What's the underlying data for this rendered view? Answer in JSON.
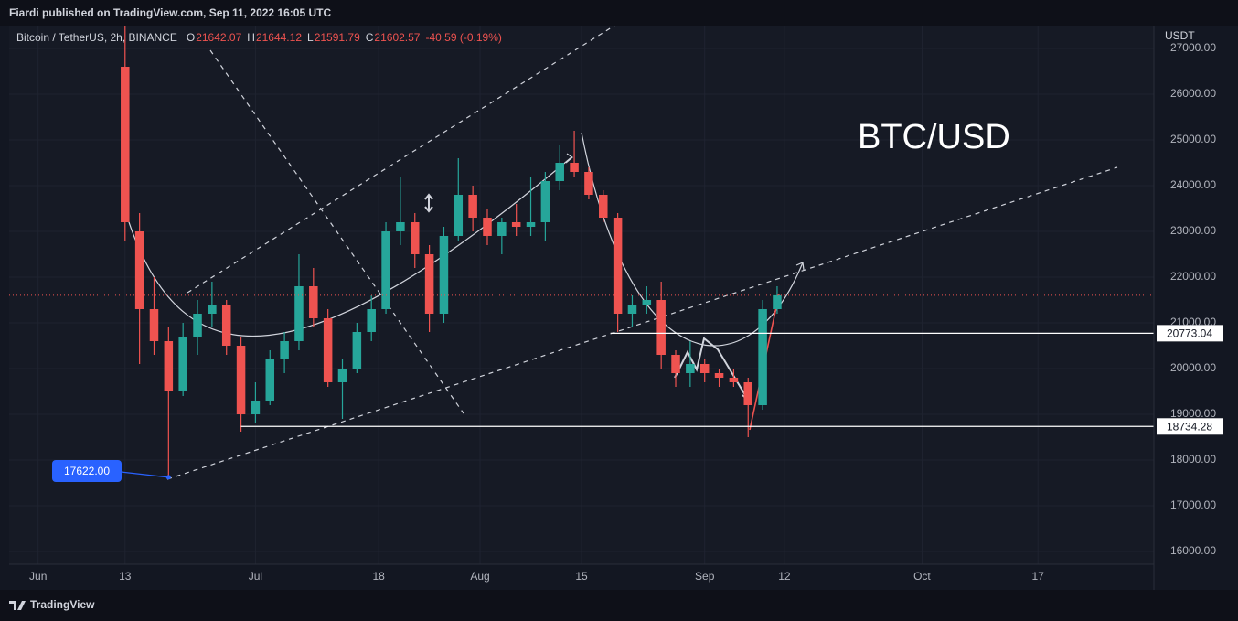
{
  "publish_note": "Fiardi published on TradingView.com, Sep 11, 2022 16:05 UTC",
  "footer": "TradingView",
  "chart_data": {
    "type": "candlestick",
    "header": {
      "symbol": "Bitcoin / TetherUS, 2h, BINANCE",
      "fields": [
        {
          "key": "O",
          "value": 21642.07
        },
        {
          "key": "H",
          "value": 21644.12
        },
        {
          "key": "L",
          "value": 21591.79
        },
        {
          "key": "C",
          "value": 21602.57
        }
      ],
      "change": "-40.59 (-0.19%)"
    },
    "annotation": "BTC/USD",
    "y_unit": "USDT",
    "x": [
      "2022-06-13",
      "2022-06-15",
      "2022-06-17",
      "2022-06-19",
      "2022-06-21",
      "2022-06-23",
      "2022-06-25",
      "2022-06-27",
      "2022-06-29",
      "2022-07-01",
      "2022-07-03",
      "2022-07-05",
      "2022-07-07",
      "2022-07-09",
      "2022-07-11",
      "2022-07-13",
      "2022-07-15",
      "2022-07-17",
      "2022-07-19",
      "2022-07-21",
      "2022-07-23",
      "2022-07-25",
      "2022-07-27",
      "2022-07-29",
      "2022-07-31",
      "2022-08-02",
      "2022-08-04",
      "2022-08-06",
      "2022-08-08",
      "2022-08-10",
      "2022-08-12",
      "2022-08-14",
      "2022-08-16",
      "2022-08-18",
      "2022-08-20",
      "2022-08-22",
      "2022-08-24",
      "2022-08-26",
      "2022-08-28",
      "2022-08-30",
      "2022-09-01",
      "2022-09-03",
      "2022-09-05",
      "2022-09-07",
      "2022-09-09",
      "2022-09-11"
    ],
    "open": [
      26600,
      23000,
      21300,
      20600,
      19500,
      20700,
      21200,
      21400,
      20500,
      19000,
      19300,
      20200,
      20600,
      21800,
      21100,
      19700,
      20000,
      20800,
      21300,
      23000,
      23200,
      22500,
      21200,
      22900,
      23800,
      23300,
      22900,
      23200,
      23100,
      23200,
      24100,
      24500,
      24300,
      23800,
      23300,
      21200,
      21400,
      21500,
      20300,
      19900,
      20100,
      19900,
      19800,
      19700,
      19200,
      21300
    ],
    "high": [
      27500,
      23400,
      22000,
      20900,
      21000,
      21500,
      21900,
      21500,
      20700,
      19700,
      20400,
      20800,
      22500,
      22200,
      21300,
      20200,
      21000,
      21600,
      23200,
      24200,
      23400,
      22700,
      23100,
      24600,
      24000,
      23500,
      23300,
      23600,
      24200,
      24300,
      24900,
      25200,
      24400,
      23900,
      23400,
      21600,
      21800,
      21900,
      20400,
      20600,
      20200,
      20000,
      20000,
      19800,
      21500,
      21800
    ],
    "low": [
      22800,
      20100,
      20300,
      17622,
      19400,
      20300,
      20900,
      20300,
      18620,
      18800,
      19200,
      19900,
      20400,
      20900,
      19600,
      18900,
      19900,
      20600,
      21200,
      22700,
      22200,
      20800,
      21000,
      22800,
      23000,
      22700,
      22500,
      22900,
      22900,
      22800,
      23900,
      24200,
      23700,
      23200,
      20800,
      20900,
      21200,
      20000,
      19600,
      19600,
      19700,
      19600,
      19600,
      18500,
      19100,
      21200
    ],
    "close": [
      23200,
      21300,
      20600,
      19500,
      20700,
      21200,
      21400,
      20500,
      19000,
      19300,
      20200,
      20600,
      21800,
      21100,
      19700,
      20000,
      20800,
      21300,
      23000,
      23200,
      22500,
      21200,
      22900,
      23800,
      23300,
      22900,
      23200,
      23100,
      23200,
      24100,
      24500,
      24300,
      23800,
      23300,
      21200,
      21400,
      21500,
      20300,
      19900,
      20100,
      19900,
      19800,
      19700,
      19200,
      21300,
      21602.57
    ],
    "up_color": "#26a69a",
    "down_color": "#ef5350",
    "xlim": [
      "2022-05-28",
      "2022-11-02"
    ],
    "xticks": [
      {
        "value": "2022-06-01",
        "label": "Jun"
      },
      {
        "value": "2022-06-13",
        "label": "13"
      },
      {
        "value": "2022-07-01",
        "label": "Jul"
      },
      {
        "value": "2022-07-18",
        "label": "18"
      },
      {
        "value": "2022-08-01",
        "label": "Aug"
      },
      {
        "value": "2022-08-15",
        "label": "15"
      },
      {
        "value": "2022-09-01",
        "label": "Sep"
      },
      {
        "value": "2022-09-12",
        "label": "12"
      },
      {
        "value": "2022-10-01",
        "label": "Oct"
      },
      {
        "value": "2022-10-17",
        "label": "17"
      }
    ],
    "ylim": [
      15720,
      27500
    ],
    "yticks": [
      {
        "value": 16000,
        "label": "16000.00"
      },
      {
        "value": 17000,
        "label": "17000.00"
      },
      {
        "value": 18000,
        "label": "18000.00"
      },
      {
        "value": 19000,
        "label": "19000.00"
      },
      {
        "value": 20000,
        "label": "20000.00"
      },
      {
        "value": 21000,
        "label": "21000.00"
      },
      {
        "value": 22000,
        "label": "22000.00"
      },
      {
        "value": 23000,
        "label": "23000.00"
      },
      {
        "value": 24000,
        "label": "24000.00"
      },
      {
        "value": 25000,
        "label": "25000.00"
      },
      {
        "value": 26000,
        "label": "26000.00"
      },
      {
        "value": 27000,
        "label": "27000.00"
      }
    ],
    "grid": true,
    "price_lines": [
      {
        "from": "2022-08-19",
        "value": 20773.04
      },
      {
        "from": "2022-06-29",
        "value": 18734.28
      }
    ],
    "low_marker": {
      "x": "2022-06-19",
      "value": 17622,
      "label": "17622.00"
    }
  }
}
